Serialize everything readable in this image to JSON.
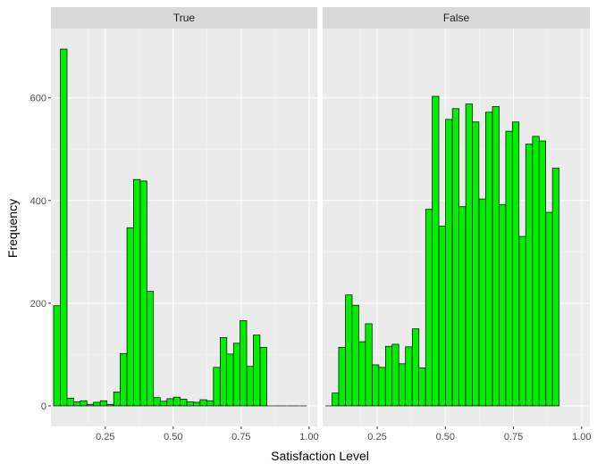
{
  "chart_data": {
    "type": "bar",
    "xlabel": "Satisfaction Level",
    "ylabel": "Frequency",
    "xlim": [
      0.05,
      1.03
    ],
    "ylim": [
      -40,
      735
    ],
    "x_ticks": [
      0.25,
      0.5,
      0.75,
      1.0
    ],
    "x_tick_labels": [
      "0.25",
      "0.50",
      "0.75",
      "1.00"
    ],
    "y_ticks": [
      0,
      200,
      400,
      600
    ],
    "y_tick_labels": [
      "0",
      "200",
      "400",
      "600"
    ],
    "bin_width": 0.0245,
    "grid": true,
    "legend": "none",
    "colors": {
      "bar_fill": "#00ee00",
      "bar_stroke": "#000000",
      "panel_bg": "#ebebeb",
      "strip_bg": "#d9d9d9",
      "grid_major": "#ffffff"
    },
    "facets": [
      {
        "label": "True",
        "bins": [
          {
            "x": 0.072,
            "y": 195
          },
          {
            "x": 0.097,
            "y": 695
          },
          {
            "x": 0.121,
            "y": 15
          },
          {
            "x": 0.146,
            "y": 8
          },
          {
            "x": 0.17,
            "y": 10
          },
          {
            "x": 0.195,
            "y": 3
          },
          {
            "x": 0.219,
            "y": 7
          },
          {
            "x": 0.244,
            "y": 10
          },
          {
            "x": 0.268,
            "y": 3
          },
          {
            "x": 0.293,
            "y": 27
          },
          {
            "x": 0.317,
            "y": 102
          },
          {
            "x": 0.342,
            "y": 347
          },
          {
            "x": 0.366,
            "y": 441
          },
          {
            "x": 0.391,
            "y": 438
          },
          {
            "x": 0.415,
            "y": 223
          },
          {
            "x": 0.44,
            "y": 16
          },
          {
            "x": 0.464,
            "y": 9
          },
          {
            "x": 0.489,
            "y": 14
          },
          {
            "x": 0.513,
            "y": 17
          },
          {
            "x": 0.538,
            "y": 13
          },
          {
            "x": 0.562,
            "y": 8
          },
          {
            "x": 0.587,
            "y": 7
          },
          {
            "x": 0.611,
            "y": 12
          },
          {
            "x": 0.636,
            "y": 10
          },
          {
            "x": 0.66,
            "y": 75
          },
          {
            "x": 0.685,
            "y": 133
          },
          {
            "x": 0.709,
            "y": 101
          },
          {
            "x": 0.734,
            "y": 122
          },
          {
            "x": 0.758,
            "y": 166
          },
          {
            "x": 0.783,
            "y": 77
          },
          {
            "x": 0.807,
            "y": 138
          },
          {
            "x": 0.832,
            "y": 114
          },
          {
            "x": 0.856,
            "y": 0
          },
          {
            "x": 0.881,
            "y": 0
          },
          {
            "x": 0.905,
            "y": 0
          },
          {
            "x": 0.93,
            "y": 0
          },
          {
            "x": 0.954,
            "y": 0
          },
          {
            "x": 0.979,
            "y": 0
          }
        ]
      },
      {
        "label": "False",
        "bins": [
          {
            "x": 0.072,
            "y": 0
          },
          {
            "x": 0.097,
            "y": 25
          },
          {
            "x": 0.121,
            "y": 114
          },
          {
            "x": 0.146,
            "y": 216
          },
          {
            "x": 0.17,
            "y": 196
          },
          {
            "x": 0.195,
            "y": 125
          },
          {
            "x": 0.219,
            "y": 160
          },
          {
            "x": 0.244,
            "y": 80
          },
          {
            "x": 0.268,
            "y": 75
          },
          {
            "x": 0.293,
            "y": 116
          },
          {
            "x": 0.317,
            "y": 120
          },
          {
            "x": 0.342,
            "y": 82
          },
          {
            "x": 0.366,
            "y": 115
          },
          {
            "x": 0.391,
            "y": 150
          },
          {
            "x": 0.415,
            "y": 74
          },
          {
            "x": 0.44,
            "y": 383
          },
          {
            "x": 0.464,
            "y": 603
          },
          {
            "x": 0.489,
            "y": 350
          },
          {
            "x": 0.513,
            "y": 558
          },
          {
            "x": 0.538,
            "y": 579
          },
          {
            "x": 0.562,
            "y": 388
          },
          {
            "x": 0.587,
            "y": 588
          },
          {
            "x": 0.611,
            "y": 553
          },
          {
            "x": 0.636,
            "y": 403
          },
          {
            "x": 0.66,
            "y": 572
          },
          {
            "x": 0.685,
            "y": 583
          },
          {
            "x": 0.709,
            "y": 392
          },
          {
            "x": 0.734,
            "y": 535
          },
          {
            "x": 0.758,
            "y": 553
          },
          {
            "x": 0.783,
            "y": 330
          },
          {
            "x": 0.807,
            "y": 510
          },
          {
            "x": 0.832,
            "y": 525
          },
          {
            "x": 0.856,
            "y": 516
          },
          {
            "x": 0.881,
            "y": 377
          },
          {
            "x": 0.905,
            "y": 463
          }
        ]
      }
    ]
  }
}
